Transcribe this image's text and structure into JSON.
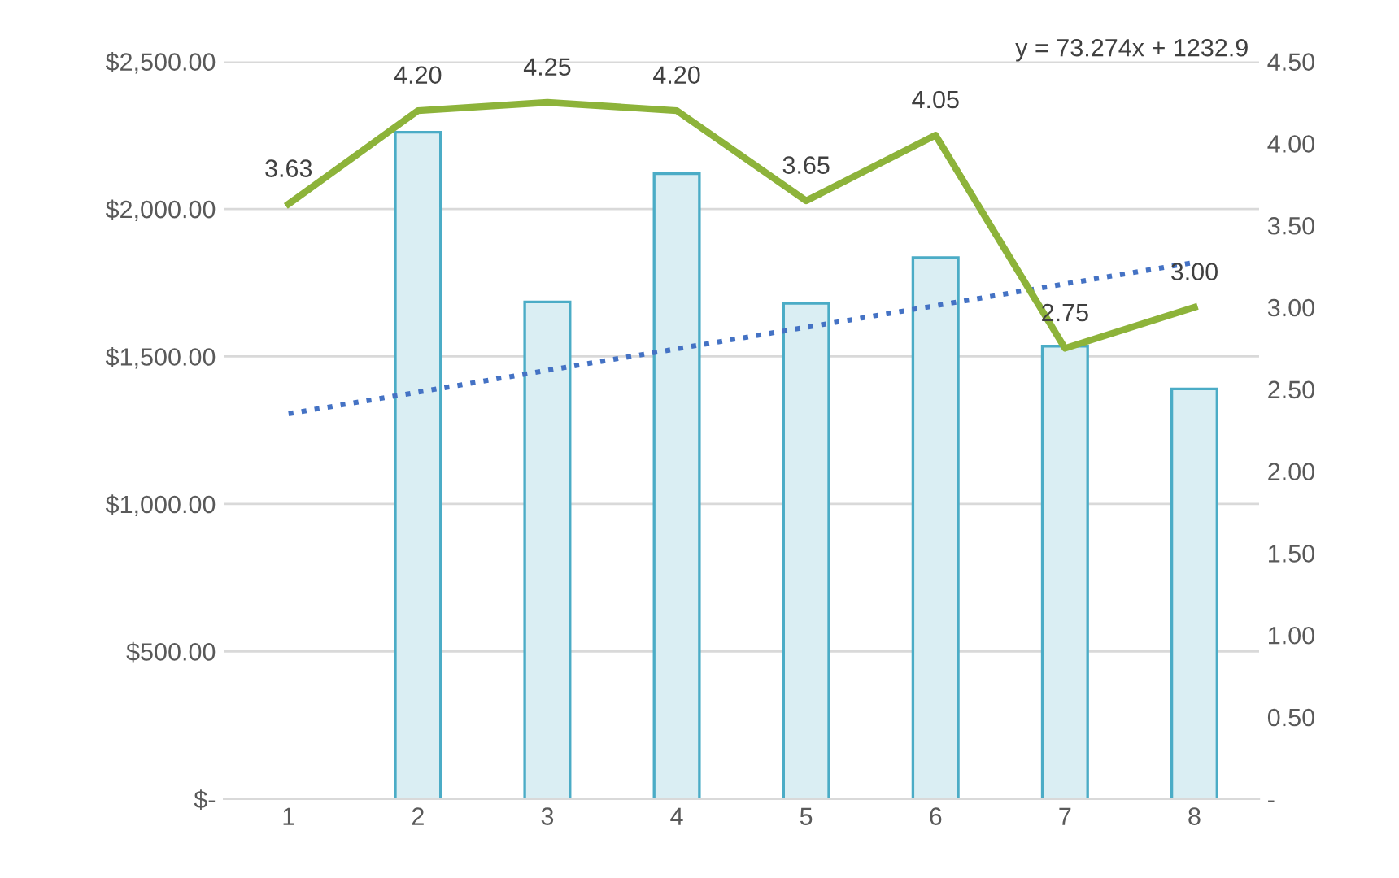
{
  "chart_data": {
    "type": "bar",
    "categories": [
      "1",
      "2",
      "3",
      "4",
      "5",
      "6",
      "7",
      "8"
    ],
    "series": [
      {
        "color": "#daeef3",
        "values": [
          null,
          2260,
          1685,
          2120,
          1680,
          1835,
          1535,
          1390
        ]
      },
      {
        "type": "line",
        "color": "#4472c4",
        "line_style": "dotted",
        "values": [
          1306,
          1379,
          1453,
          1526,
          1599,
          1672,
          1746,
          1819
        ]
      },
      {
        "type": "line",
        "axis": "y2",
        "color": "#8db33a",
        "line_style": "solid",
        "values": [
          3.63,
          4.2,
          4.25,
          4.2,
          3.65,
          4.05,
          2.75,
          3.0
        ],
        "value_labels": [
          "3.63",
          "4.20",
          "4.25",
          "4.20",
          "3.65",
          "4.05",
          "2.75",
          "3.00"
        ]
      }
    ],
    "ylim": [
      0,
      2500
    ],
    "yticks": [
      {
        "value": 0,
        "label": "$-"
      },
      {
        "value": 500,
        "label": "$500.00"
      },
      {
        "value": 1000,
        "label": "$1,000.00"
      },
      {
        "value": 1500,
        "label": "$1,500.00"
      },
      {
        "value": 2000,
        "label": "$2,000.00"
      },
      {
        "value": 2500,
        "label": "$2,500.00"
      }
    ],
    "y2lim": [
      0,
      4.5
    ],
    "y2ticks": [
      {
        "value": 0,
        "label": "-"
      },
      {
        "value": 0.5,
        "label": "0.50"
      },
      {
        "value": 1,
        "label": "1.00"
      },
      {
        "value": 1.5,
        "label": "1.50"
      },
      {
        "value": 2,
        "label": "2.00"
      },
      {
        "value": 2.5,
        "label": "2.50"
      },
      {
        "value": 3,
        "label": "3.00"
      },
      {
        "value": 3.5,
        "label": "3.50"
      },
      {
        "value": 4,
        "label": "4.00"
      },
      {
        "value": 4.5,
        "label": "4.50"
      }
    ],
    "grid": "y",
    "annotations": [
      "y = 73.274x + 1232.9"
    ]
  }
}
